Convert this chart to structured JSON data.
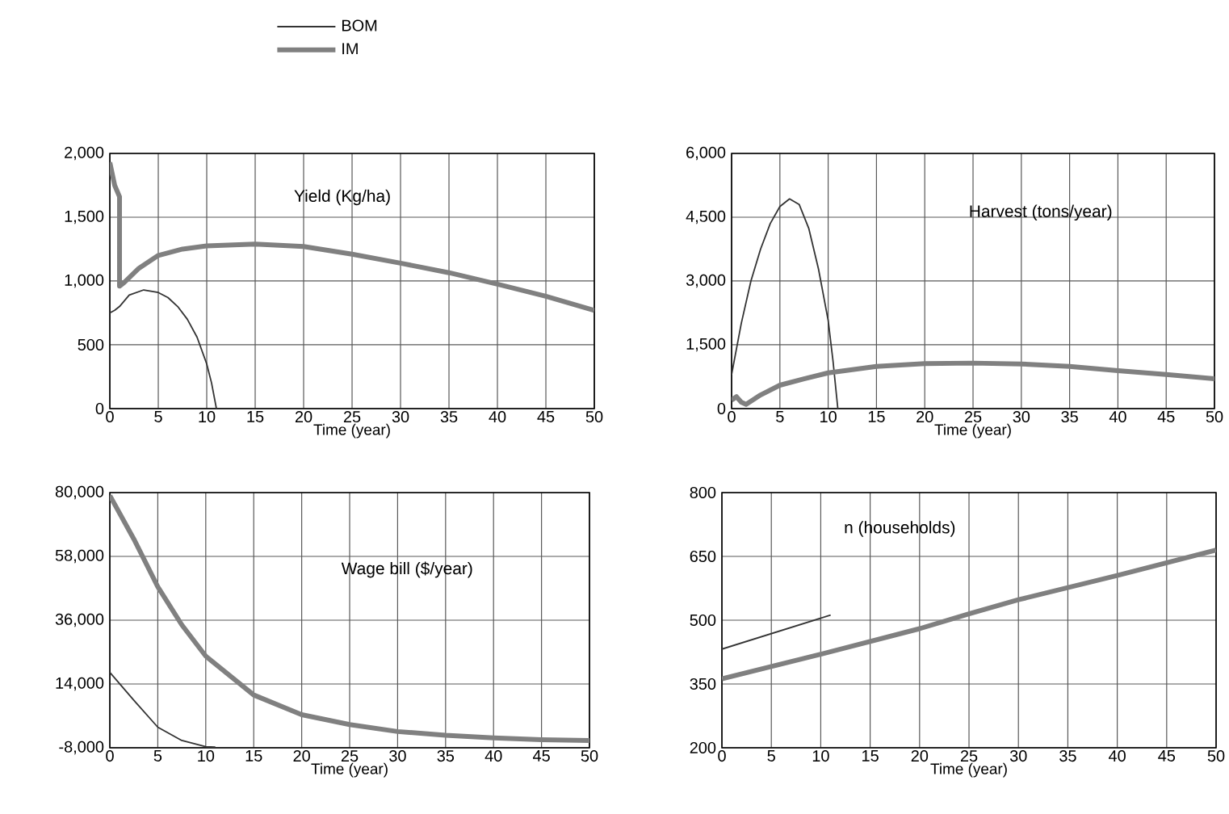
{
  "chart_data": [
    {
      "type": "line",
      "title": "Yield (Kg/ha)",
      "xlabel": "Time (year)",
      "xlim": [
        0,
        50
      ],
      "ylim": [
        0,
        2000
      ],
      "xticks": [
        0,
        5,
        10,
        15,
        20,
        25,
        30,
        35,
        40,
        45,
        50
      ],
      "yticks": [
        0,
        500,
        {
          "value": 1000,
          "label": "1,000"
        },
        {
          "value": 1500,
          "label": "1,500"
        },
        {
          "value": 2000,
          "label": "2,000"
        }
      ],
      "grid": true,
      "legend": "top",
      "series": [
        {
          "name": "BOM",
          "color": "#333333",
          "x": [
            0,
            0.5,
            1,
            2,
            3.5,
            5,
            6,
            7,
            8,
            9,
            10,
            10.5,
            11
          ],
          "values": [
            750,
            770,
            800,
            890,
            930,
            910,
            870,
            800,
            700,
            560,
            350,
            200,
            0
          ]
        },
        {
          "name": "IM",
          "color": "#808080",
          "x": [
            0,
            0.5,
            1,
            1,
            1.5,
            3,
            5,
            7.5,
            10,
            15,
            20,
            25,
            30,
            35,
            40,
            45,
            50
          ],
          "values": [
            1930,
            1750,
            1660,
            960,
            990,
            1100,
            1200,
            1250,
            1275,
            1290,
            1270,
            1210,
            1140,
            1065,
            975,
            880,
            770
          ]
        }
      ]
    },
    {
      "type": "line",
      "title": "Harvest (tons/year)",
      "xlabel": "Time (year)",
      "xlim": [
        0,
        50
      ],
      "ylim": [
        0,
        6000
      ],
      "xticks": [
        0,
        5,
        10,
        15,
        20,
        25,
        30,
        35,
        40,
        45,
        50
      ],
      "yticks": [
        0,
        {
          "value": 1500,
          "label": "1,500"
        },
        {
          "value": 3000,
          "label": "3,000"
        },
        {
          "value": 4500,
          "label": "4,500"
        },
        {
          "value": 6000,
          "label": "6,000"
        }
      ],
      "grid": true,
      "series": [
        {
          "color": "#333333",
          "x": [
            0,
            1,
            2,
            3,
            4,
            5,
            6,
            7,
            8,
            9,
            10,
            10.5,
            11
          ],
          "values": [
            800,
            2000,
            3000,
            3750,
            4350,
            4750,
            4930,
            4800,
            4230,
            3280,
            2070,
            1120,
            0
          ]
        },
        {
          "color": "#808080",
          "x": [
            0,
            0.5,
            1,
            1.5,
            3,
            5,
            7.5,
            10,
            15,
            20,
            25,
            30,
            35,
            40,
            45,
            50
          ],
          "values": [
            200,
            280,
            150,
            100,
            320,
            550,
            700,
            840,
            990,
            1060,
            1070,
            1050,
            990,
            890,
            800,
            700
          ]
        }
      ]
    },
    {
      "type": "line",
      "xlabel": "Time (year)",
      "title": "Wage bill ($/year)",
      "xlim": [
        0,
        50
      ],
      "ylim": [
        -8000,
        80000
      ],
      "xticks": [
        0,
        5,
        10,
        15,
        20,
        25,
        30,
        35,
        40,
        45,
        50
      ],
      "yticks": [
        {
          "value": -8000,
          "label": "-8,000"
        },
        {
          "value": 14000,
          "label": "14,000"
        },
        {
          "value": 36000,
          "label": "36,000"
        },
        {
          "value": 58000,
          "label": "58,000"
        },
        {
          "value": 80000,
          "label": "80,000"
        }
      ],
      "grid": true,
      "series": [
        {
          "color": "#333333",
          "x": [
            0,
            2.5,
            5,
            7.5,
            10,
            11
          ],
          "values": [
            18000,
            8400,
            -900,
            -5500,
            -7600,
            -7800
          ]
        },
        {
          "color": "#808080",
          "x": [
            0,
            2.5,
            5,
            7.5,
            10,
            15,
            20,
            25,
            30,
            35,
            40,
            45,
            50
          ],
          "values": [
            79000,
            64000,
            47500,
            34400,
            23600,
            10200,
            3400,
            0,
            -2400,
            -3700,
            -4600,
            -5200,
            -5500
          ]
        }
      ]
    },
    {
      "type": "line",
      "xlabel": "Time (year)",
      "title": "n (households)",
      "xlim": [
        0,
        50
      ],
      "ylim": [
        200,
        800
      ],
      "xticks": [
        0,
        5,
        10,
        15,
        20,
        25,
        30,
        35,
        40,
        45,
        50
      ],
      "yticks": [
        200,
        350,
        500,
        650,
        800
      ],
      "grid": true,
      "series": [
        {
          "color": "#333333",
          "x": [
            0,
            11
          ],
          "values": [
            432,
            512
          ]
        },
        {
          "color": "#808080",
          "x": [
            0,
            10,
            20,
            25,
            30,
            40,
            50
          ],
          "values": [
            362,
            420,
            480,
            515,
            548,
            605,
            665
          ]
        }
      ]
    }
  ]
}
